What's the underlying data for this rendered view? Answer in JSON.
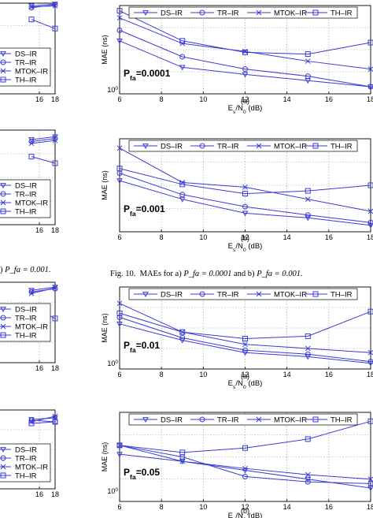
{
  "colors": {
    "series": "#3a3ad6",
    "grid": "#9a9a9a",
    "axis": "#000000"
  },
  "captions": {
    "left_partial": {
      "text_prefix": ") ",
      "math": "P_fa = 0.001."
    },
    "fig10": {
      "prefix": "Fig. 10.",
      "text": "MAEs for a) ",
      "math1": "P_fa = 0.0001",
      "mid": " and b) ",
      "math2": "P_fa = 0.001."
    }
  },
  "chart_data": [
    {
      "id": "right-a",
      "type": "line",
      "annotation": "P_fa=0.0001",
      "ylabel": "MAE (ns)",
      "xlabel": "E_s/N_0 (dB)",
      "sublabel": "(a)",
      "x": [
        6,
        9,
        12,
        15,
        18
      ],
      "xlim": [
        6,
        18
      ],
      "xticks": [
        6,
        8,
        10,
        12,
        14,
        16,
        18
      ],
      "ytick_label": "10^0",
      "grid": true,
      "legend": "top",
      "marker_legend": true,
      "series": [
        {
          "name": "DS–IR",
          "marker": "triangle",
          "y": [
            0.6,
            0.3,
            0.22,
            0.15,
            0.08
          ]
        },
        {
          "name": "TR–IR",
          "marker": "circle",
          "y": [
            0.72,
            0.42,
            0.28,
            0.2,
            0.08
          ]
        },
        {
          "name": "MTOK–IR",
          "marker": "x",
          "y": [
            0.86,
            0.57,
            0.48,
            0.37,
            0.28
          ]
        },
        {
          "name": "TH–IR",
          "marker": "square",
          "y": [
            0.94,
            0.6,
            0.47,
            0.45,
            0.58
          ]
        }
      ]
    },
    {
      "id": "right-b",
      "type": "line",
      "annotation": "P_fa=0.001",
      "ylabel": "MAE (ns)",
      "xlabel": "E_s/N_0 (dB)",
      "sublabel": "(b)",
      "x": [
        6,
        9,
        12,
        15,
        18
      ],
      "xlim": [
        6,
        18
      ],
      "xticks": [
        6,
        8,
        10,
        12,
        14,
        16,
        18
      ],
      "ytick_label": "",
      "grid": true,
      "legend": "top",
      "marker_legend": true,
      "series": [
        {
          "name": "DS–IR",
          "marker": "triangle",
          "y": [
            0.55,
            0.35,
            0.2,
            0.15,
            0.07
          ]
        },
        {
          "name": "TR–IR",
          "marker": "circle",
          "y": [
            0.63,
            0.4,
            0.27,
            0.18,
            0.1
          ]
        },
        {
          "name": "MTOK–IR",
          "marker": "x",
          "y": [
            0.9,
            0.53,
            0.48,
            0.35,
            0.22
          ]
        },
        {
          "name": "TH–IR",
          "marker": "square",
          "y": [
            0.68,
            0.51,
            0.41,
            0.44,
            0.5
          ]
        }
      ]
    },
    {
      "id": "right-c",
      "type": "line",
      "annotation": "P_fa=0.01",
      "ylabel": "MAE (ns)",
      "xlabel": "E_s/N_0 (dB)",
      "sublabel": "(a)",
      "x": [
        6,
        9,
        12,
        15,
        18
      ],
      "xlim": [
        6,
        18
      ],
      "xticks": [
        6,
        8,
        10,
        12,
        14,
        16,
        18
      ],
      "ytick_label": "10^0",
      "grid": true,
      "legend": "top",
      "marker_legend": true,
      "series": [
        {
          "name": "DS–IR",
          "marker": "triangle",
          "y": [
            0.55,
            0.35,
            0.2,
            0.15,
            0.07
          ]
        },
        {
          "name": "TR–IR",
          "marker": "circle",
          "y": [
            0.63,
            0.38,
            0.23,
            0.18,
            0.09
          ]
        },
        {
          "name": "MTOK–IR",
          "marker": "x",
          "y": [
            0.8,
            0.45,
            0.3,
            0.25,
            0.2
          ]
        },
        {
          "name": "TH–IR",
          "marker": "square",
          "y": [
            0.68,
            0.45,
            0.37,
            0.4,
            0.7
          ]
        }
      ]
    },
    {
      "id": "right-d",
      "type": "line",
      "annotation": "P_fa=0.05",
      "ylabel": "MAE (ns)",
      "xlabel": "E_s/N_0 (dB)",
      "sublabel": "(b)",
      "x": [
        6,
        9,
        12,
        15,
        18
      ],
      "xlim": [
        6,
        18
      ],
      "xticks": [
        6,
        8,
        10,
        12,
        14,
        16,
        18
      ],
      "ytick_label": "10^0",
      "grid": true,
      "legend": "top",
      "marker_legend": true,
      "series": [
        {
          "name": "DS–IR",
          "marker": "triangle",
          "y": [
            0.53,
            0.45,
            0.35,
            0.25,
            0.15
          ]
        },
        {
          "name": "TR–IR",
          "marker": "circle",
          "y": [
            0.63,
            0.5,
            0.28,
            0.22,
            0.2
          ]
        },
        {
          "name": "MTOK–IR",
          "marker": "x",
          "y": [
            0.63,
            0.45,
            0.37,
            0.3,
            0.25
          ]
        },
        {
          "name": "TH–IR",
          "marker": "square",
          "y": [
            0.63,
            0.55,
            0.6,
            0.7,
            0.9
          ]
        }
      ]
    },
    {
      "id": "left-a",
      "type": "line",
      "annotation": "",
      "ylabel": "",
      "xlabel": "",
      "sublabel": "",
      "x": [
        15,
        18
      ],
      "xlim": [
        6,
        18
      ],
      "xticks": [
        16,
        18
      ],
      "ytick_label": "",
      "grid": true,
      "legend": "bottom-left",
      "marker_legend": false,
      "series": [
        {
          "name": "DS–IR",
          "marker": "triangle",
          "y": [
            0.97,
            0.99
          ]
        },
        {
          "name": "TR–IR",
          "marker": "circle",
          "y": [
            0.95,
            0.98
          ]
        },
        {
          "name": "MTOK–IR",
          "marker": "x",
          "y": [
            0.96,
            0.97
          ]
        },
        {
          "name": "TH–IR",
          "marker": "square",
          "y": [
            0.82,
            0.72
          ]
        }
      ]
    },
    {
      "id": "left-b",
      "type": "line",
      "annotation": "",
      "ylabel": "",
      "xlabel": "",
      "sublabel": "",
      "x": [
        15,
        18
      ],
      "xlim": [
        6,
        18
      ],
      "xticks": [
        16,
        18
      ],
      "ytick_label": "",
      "grid": true,
      "legend": "bottom-left",
      "marker_legend": false,
      "series": [
        {
          "name": "DS–IR",
          "marker": "triangle",
          "y": [
            0.9,
            0.93
          ]
        },
        {
          "name": "TR–IR",
          "marker": "circle",
          "y": [
            0.88,
            0.91
          ]
        },
        {
          "name": "MTOK–IR",
          "marker": "x",
          "y": [
            0.86,
            0.89
          ]
        },
        {
          "name": "TH–IR",
          "marker": "square",
          "y": [
            0.72,
            0.65
          ]
        }
      ]
    },
    {
      "id": "left-c",
      "type": "line",
      "annotation": "",
      "ylabel": "",
      "xlabel": "",
      "sublabel": "",
      "x": [
        15,
        18
      ],
      "xlim": [
        6,
        18
      ],
      "xticks": [
        16,
        18
      ],
      "ytick_label": "",
      "grid": true,
      "legend": "bottom-left",
      "marker_legend": false,
      "series": [
        {
          "name": "DS–IR",
          "marker": "triangle",
          "y": [
            0.9,
            0.94
          ]
        },
        {
          "name": "TR–IR",
          "marker": "circle",
          "y": [
            0.88,
            0.92
          ]
        },
        {
          "name": "MTOK–IR",
          "marker": "x",
          "y": [
            0.86,
            0.93
          ]
        },
        {
          "name": "TH–IR",
          "marker": "square",
          "y": [
            0.7,
            0.55
          ]
        }
      ]
    },
    {
      "id": "left-d",
      "type": "line",
      "annotation": "",
      "ylabel": "",
      "xlabel": "",
      "sublabel": "",
      "x": [
        15,
        18
      ],
      "xlim": [
        6,
        18
      ],
      "xticks": [
        16,
        18
      ],
      "ytick_label": "",
      "grid": true,
      "legend": "bottom-left",
      "marker_legend": false,
      "series": [
        {
          "name": "DS–IR",
          "marker": "triangle",
          "y": [
            0.88,
            0.9
          ]
        },
        {
          "name": "TR–IR",
          "marker": "circle",
          "y": [
            0.87,
            0.85
          ]
        },
        {
          "name": "MTOK–IR",
          "marker": "x",
          "y": [
            0.85,
            0.92
          ]
        },
        {
          "name": "TH–IR",
          "marker": "square",
          "y": [
            0.83,
            0.85
          ]
        }
      ]
    }
  ]
}
